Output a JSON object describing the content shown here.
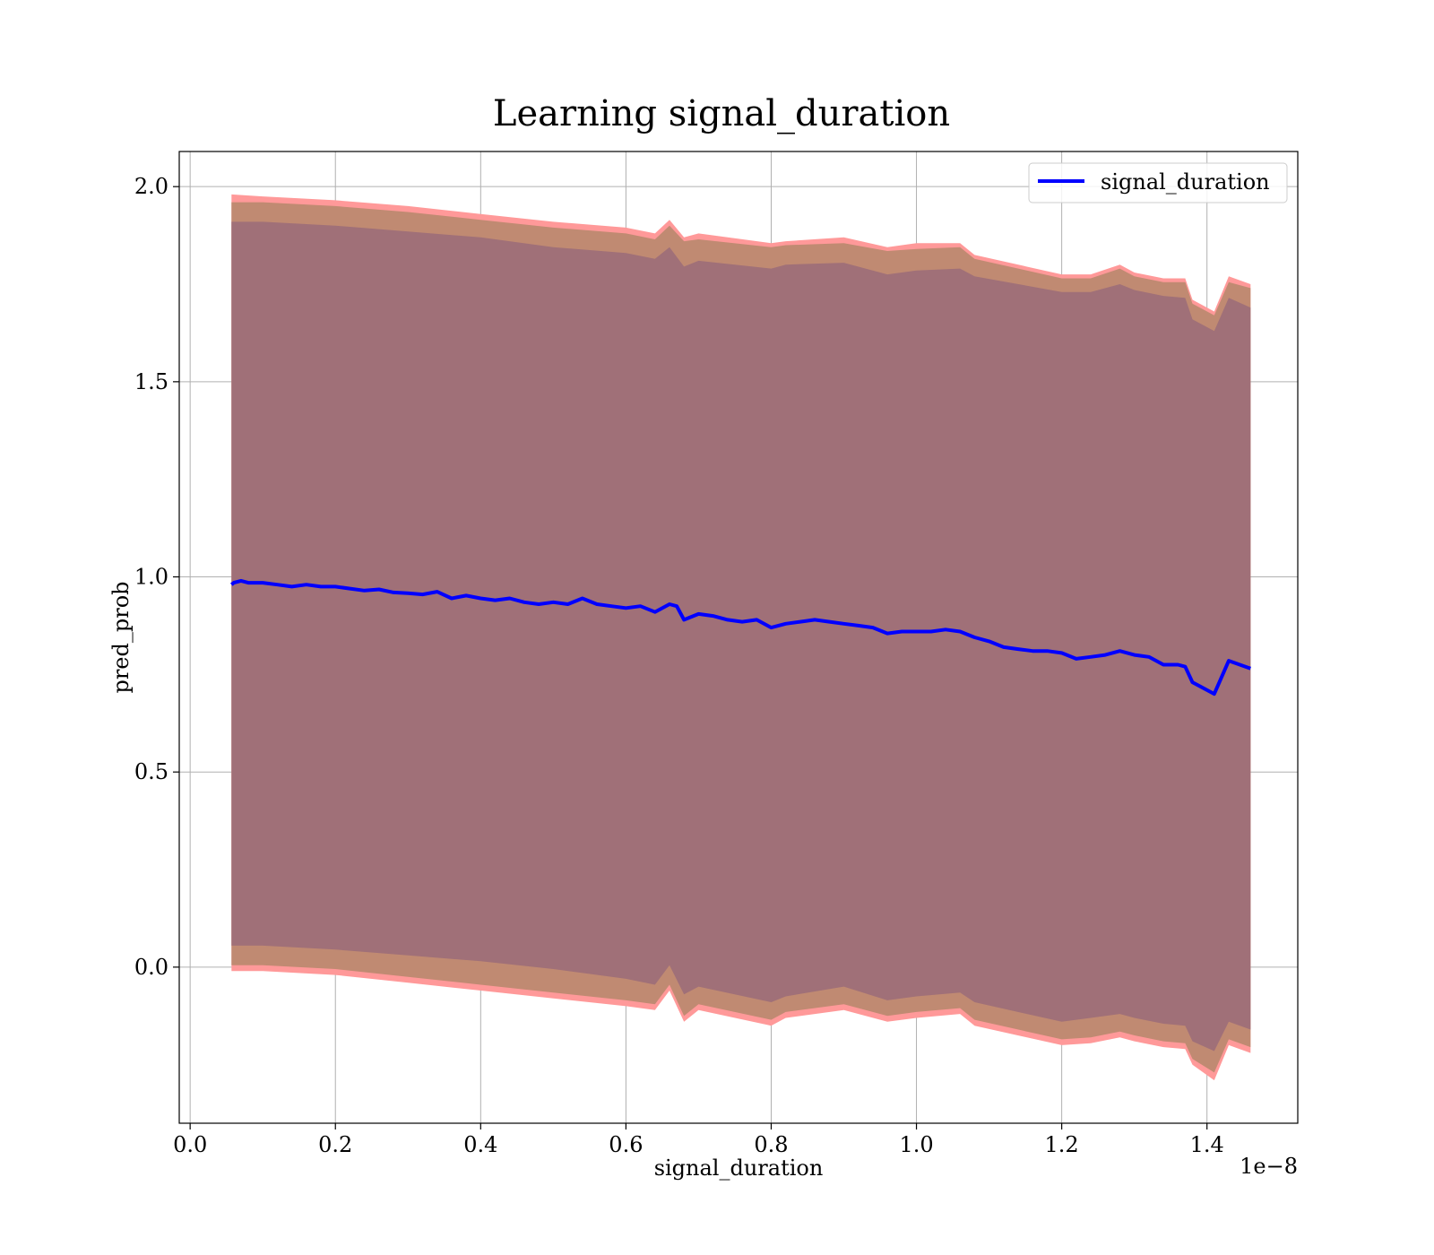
{
  "chart_data": {
    "type": "line",
    "title": "Learning signal_duration",
    "xlabel": "signal_duration",
    "ylabel": "pred_prob",
    "x_offset_label": "1e−8",
    "xlim": [
      -0.015,
      1.525
    ],
    "ylim": [
      -0.4,
      2.09
    ],
    "xticks": [
      0.0,
      0.2,
      0.4,
      0.6,
      0.8,
      1.0,
      1.2,
      1.4
    ],
    "xtick_labels": [
      "0.0",
      "0.2",
      "0.4",
      "0.6",
      "0.8",
      "1.0",
      "1.2",
      "1.4"
    ],
    "yticks": [
      0.0,
      0.5,
      1.0,
      1.5,
      2.0
    ],
    "ytick_labels": [
      "0.0",
      "0.5",
      "1.0",
      "1.5",
      "2.0"
    ],
    "grid": true,
    "legend": {
      "position": "top-right",
      "entries": [
        "signal_duration"
      ]
    },
    "colors": {
      "line": "#0000ff",
      "band_outer": "#ff9999",
      "band_middle": "#c08a72",
      "band_inner": "#a07078",
      "grid": "#b0b0b0"
    },
    "series": [
      {
        "name": "signal_duration",
        "x": [
          0.057,
          0.06,
          0.07,
          0.08,
          0.1,
          0.12,
          0.14,
          0.16,
          0.18,
          0.2,
          0.22,
          0.24,
          0.26,
          0.28,
          0.3,
          0.32,
          0.34,
          0.36,
          0.38,
          0.4,
          0.42,
          0.44,
          0.46,
          0.48,
          0.5,
          0.52,
          0.54,
          0.56,
          0.58,
          0.6,
          0.62,
          0.64,
          0.66,
          0.67,
          0.68,
          0.7,
          0.72,
          0.74,
          0.76,
          0.78,
          0.8,
          0.82,
          0.84,
          0.86,
          0.88,
          0.9,
          0.92,
          0.94,
          0.96,
          0.98,
          1.0,
          1.02,
          1.04,
          1.06,
          1.08,
          1.1,
          1.12,
          1.14,
          1.16,
          1.18,
          1.2,
          1.22,
          1.24,
          1.26,
          1.28,
          1.3,
          1.32,
          1.34,
          1.36,
          1.37,
          1.38,
          1.41,
          1.43,
          1.46
        ],
        "y": [
          0.98,
          0.985,
          0.99,
          0.985,
          0.985,
          0.98,
          0.975,
          0.98,
          0.975,
          0.975,
          0.97,
          0.965,
          0.968,
          0.96,
          0.958,
          0.955,
          0.962,
          0.945,
          0.952,
          0.945,
          0.94,
          0.945,
          0.935,
          0.93,
          0.935,
          0.93,
          0.945,
          0.93,
          0.925,
          0.92,
          0.925,
          0.91,
          0.93,
          0.925,
          0.89,
          0.905,
          0.9,
          0.89,
          0.885,
          0.89,
          0.87,
          0.88,
          0.885,
          0.89,
          0.885,
          0.88,
          0.875,
          0.87,
          0.855,
          0.86,
          0.86,
          0.86,
          0.865,
          0.86,
          0.845,
          0.835,
          0.82,
          0.815,
          0.81,
          0.81,
          0.805,
          0.79,
          0.795,
          0.8,
          0.81,
          0.8,
          0.795,
          0.775,
          0.775,
          0.77,
          0.73,
          0.7,
          0.785,
          0.765
        ]
      }
    ],
    "bands": [
      {
        "name": "outer",
        "x": [
          0.057,
          0.1,
          0.2,
          0.3,
          0.4,
          0.5,
          0.6,
          0.64,
          0.66,
          0.68,
          0.7,
          0.8,
          0.82,
          0.9,
          0.96,
          1.0,
          1.06,
          1.08,
          1.2,
          1.24,
          1.28,
          1.3,
          1.34,
          1.37,
          1.38,
          1.41,
          1.43,
          1.46
        ],
        "upper": [
          1.98,
          1.975,
          1.965,
          1.95,
          1.93,
          1.91,
          1.895,
          1.88,
          1.915,
          1.87,
          1.88,
          1.855,
          1.86,
          1.87,
          1.845,
          1.855,
          1.855,
          1.825,
          1.775,
          1.775,
          1.8,
          1.78,
          1.765,
          1.765,
          1.71,
          1.68,
          1.77,
          1.75
        ],
        "lower": [
          -0.01,
          -0.01,
          -0.02,
          -0.04,
          -0.06,
          -0.08,
          -0.1,
          -0.11,
          -0.06,
          -0.14,
          -0.11,
          -0.15,
          -0.13,
          -0.11,
          -0.14,
          -0.13,
          -0.12,
          -0.15,
          -0.2,
          -0.195,
          -0.18,
          -0.19,
          -0.205,
          -0.21,
          -0.25,
          -0.29,
          -0.2,
          -0.22
        ]
      },
      {
        "name": "middle",
        "x": [
          0.057,
          0.1,
          0.2,
          0.3,
          0.4,
          0.5,
          0.6,
          0.64,
          0.66,
          0.68,
          0.7,
          0.8,
          0.82,
          0.9,
          0.96,
          1.0,
          1.06,
          1.08,
          1.2,
          1.24,
          1.28,
          1.3,
          1.34,
          1.37,
          1.38,
          1.41,
          1.43,
          1.46
        ],
        "upper": [
          1.96,
          1.96,
          1.95,
          1.935,
          1.915,
          1.895,
          1.88,
          1.865,
          1.9,
          1.86,
          1.865,
          1.845,
          1.85,
          1.855,
          1.835,
          1.84,
          1.845,
          1.815,
          1.765,
          1.765,
          1.79,
          1.77,
          1.755,
          1.755,
          1.7,
          1.67,
          1.755,
          1.74
        ],
        "lower": [
          0.005,
          0.005,
          -0.005,
          -0.025,
          -0.045,
          -0.065,
          -0.085,
          -0.095,
          -0.045,
          -0.125,
          -0.095,
          -0.135,
          -0.115,
          -0.095,
          -0.125,
          -0.115,
          -0.105,
          -0.135,
          -0.185,
          -0.18,
          -0.165,
          -0.175,
          -0.19,
          -0.195,
          -0.235,
          -0.27,
          -0.185,
          -0.205
        ]
      },
      {
        "name": "inner",
        "x": [
          0.057,
          0.1,
          0.2,
          0.3,
          0.4,
          0.5,
          0.6,
          0.64,
          0.66,
          0.68,
          0.7,
          0.8,
          0.82,
          0.9,
          0.96,
          1.0,
          1.06,
          1.08,
          1.2,
          1.24,
          1.28,
          1.3,
          1.34,
          1.37,
          1.38,
          1.41,
          1.43,
          1.46
        ],
        "upper": [
          1.91,
          1.91,
          1.9,
          1.885,
          1.87,
          1.845,
          1.83,
          1.815,
          1.845,
          1.795,
          1.81,
          1.79,
          1.8,
          1.805,
          1.775,
          1.785,
          1.79,
          1.77,
          1.73,
          1.73,
          1.75,
          1.735,
          1.72,
          1.715,
          1.66,
          1.63,
          1.715,
          1.69
        ],
        "lower": [
          0.055,
          0.055,
          0.045,
          0.03,
          0.015,
          -0.005,
          -0.03,
          -0.045,
          0.005,
          -0.07,
          -0.05,
          -0.09,
          -0.075,
          -0.05,
          -0.085,
          -0.075,
          -0.065,
          -0.09,
          -0.14,
          -0.13,
          -0.12,
          -0.13,
          -0.145,
          -0.15,
          -0.19,
          -0.215,
          -0.14,
          -0.16
        ]
      }
    ]
  }
}
